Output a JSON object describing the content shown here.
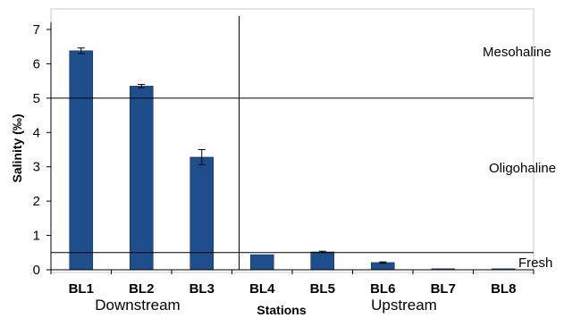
{
  "chart_data": {
    "type": "bar",
    "categories": [
      "BL1",
      "BL2",
      "BL3",
      "BL4",
      "BL5",
      "BL6",
      "BL7",
      "BL8"
    ],
    "values": [
      6.38,
      5.35,
      3.28,
      0.44,
      0.52,
      0.21,
      0.03,
      0.03
    ],
    "errors": [
      0.08,
      0.05,
      0.22,
      0.0,
      0.02,
      0.02,
      0.0,
      0.0
    ],
    "xlabel": "Stations",
    "ylabel": "Salinity (‰)",
    "ylim": [
      0,
      7
    ],
    "yticks": [
      0,
      1,
      2,
      3,
      4,
      5,
      6,
      7
    ],
    "bar_color": "#1f4e8c",
    "groups": [
      {
        "label": "Downstream",
        "categories": [
          "BL1",
          "BL2",
          "BL3"
        ]
      },
      {
        "label": "Upstream",
        "categories": [
          "BL4",
          "BL5",
          "BL6",
          "BL7",
          "BL8"
        ]
      }
    ],
    "thresholds": [
      {
        "value": 5,
        "label": "Mesohaline"
      },
      {
        "value": 0.5,
        "label": "Fresh"
      }
    ],
    "zone_labels": [
      "Mesohaline",
      "Oligohaline",
      "Fresh"
    ]
  }
}
